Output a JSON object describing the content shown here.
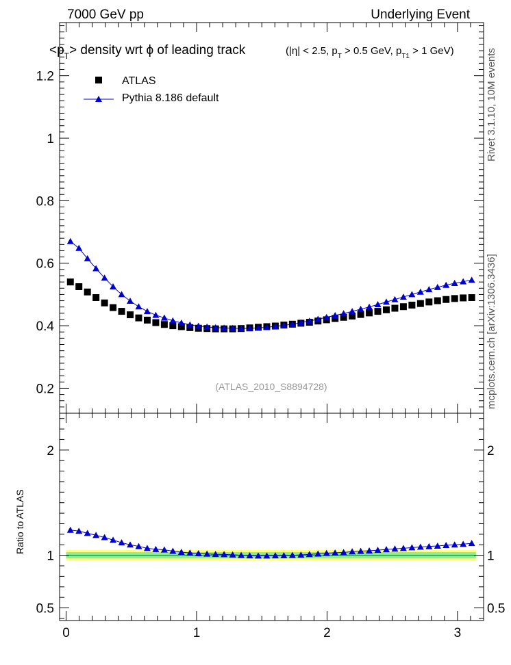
{
  "header": {
    "energy_label": "7000 GeV pp",
    "process_label": "Underlying Event"
  },
  "title": {
    "main_parts": [
      "<p",
      "T",
      "> density wrt  ϕ of leading track"
    ],
    "cuts_parts": [
      "(|η| < 2.5, p",
      "T",
      " > 0.5 GeV, p",
      "T1",
      " > 1 GeV)"
    ]
  },
  "side_labels": {
    "rivet": "Rivet 3.1.10,  10M events",
    "mcplots": "mcplots.cern.ch [arXiv:1306.3436]"
  },
  "analysis_tag": "(ATLAS_2010_S8894728)",
  "legend": {
    "placement": "top-left",
    "entries": [
      {
        "label": "ATLAS",
        "marker": "square",
        "color": "#000000"
      },
      {
        "label": "Pythia 8.186 default",
        "marker": "triangle-line",
        "color": "#0000cc"
      }
    ]
  },
  "ratio_ylabel": "Ratio to ATLAS",
  "colors": {
    "data": "#000000",
    "mc": "#0000cc",
    "band_outer": "#ffff80",
    "band_inner": "#90ee90",
    "ref_line": "#00aa55",
    "tag_text": "#999999",
    "side_text": "#555555"
  },
  "chart_data": [
    {
      "type": "scatter",
      "panel": "main",
      "xlim": [
        -0.05,
        3.2
      ],
      "ylim": [
        0.12,
        1.37
      ],
      "yticks": [
        0.2,
        0.4,
        0.6,
        0.8,
        1,
        1.2
      ],
      "ytick_labels": [
        "0.2",
        "0.4",
        "0.6",
        "0.8",
        "1",
        "1.2"
      ],
      "series": [
        {
          "name": "ATLAS",
          "x": [
            0.0327,
            0.0982,
            0.1636,
            0.2291,
            0.2945,
            0.36,
            0.4254,
            0.4909,
            0.5563,
            0.6218,
            0.6872,
            0.7527,
            0.8181,
            0.8836,
            0.949,
            1.0145,
            1.0799,
            1.1454,
            1.2108,
            1.2763,
            1.3417,
            1.4072,
            1.4726,
            1.5381,
            1.6035,
            1.669,
            1.7344,
            1.7999,
            1.8653,
            1.9308,
            1.9962,
            2.0617,
            2.1271,
            2.1926,
            2.258,
            2.3235,
            2.3889,
            2.4544,
            2.5198,
            2.5853,
            2.6507,
            2.7162,
            2.7816,
            2.8471,
            2.9125,
            2.978,
            3.0434,
            3.1089
          ],
          "y": [
            0.54,
            0.525,
            0.508,
            0.49,
            0.473,
            0.458,
            0.446,
            0.435,
            0.425,
            0.418,
            0.41,
            0.404,
            0.4,
            0.397,
            0.394,
            0.392,
            0.391,
            0.39,
            0.39,
            0.39,
            0.391,
            0.393,
            0.395,
            0.397,
            0.399,
            0.402,
            0.405,
            0.408,
            0.411,
            0.415,
            0.419,
            0.423,
            0.427,
            0.431,
            0.436,
            0.441,
            0.446,
            0.451,
            0.456,
            0.461,
            0.466,
            0.471,
            0.476,
            0.48,
            0.484,
            0.487,
            0.489,
            0.49
          ]
        },
        {
          "name": "Pythia 8.186 default",
          "x": [
            0.0327,
            0.0982,
            0.1636,
            0.2291,
            0.2945,
            0.36,
            0.4254,
            0.4909,
            0.5563,
            0.6218,
            0.6872,
            0.7527,
            0.8181,
            0.8836,
            0.949,
            1.0145,
            1.0799,
            1.1454,
            1.2108,
            1.2763,
            1.3417,
            1.4072,
            1.4726,
            1.5381,
            1.6035,
            1.669,
            1.7344,
            1.7999,
            1.8653,
            1.9308,
            1.9962,
            2.0617,
            2.1271,
            2.1926,
            2.258,
            2.3235,
            2.3889,
            2.4544,
            2.5198,
            2.5853,
            2.6507,
            2.7162,
            2.7816,
            2.8471,
            2.9125,
            2.978,
            3.0434,
            3.1089
          ],
          "y": [
            0.67,
            0.648,
            0.615,
            0.583,
            0.553,
            0.525,
            0.5,
            0.479,
            0.461,
            0.446,
            0.434,
            0.425,
            0.416,
            0.409,
            0.403,
            0.399,
            0.396,
            0.394,
            0.393,
            0.392,
            0.391,
            0.392,
            0.393,
            0.395,
            0.398,
            0.401,
            0.405,
            0.41,
            0.415,
            0.421,
            0.427,
            0.433,
            0.439,
            0.446,
            0.453,
            0.46,
            0.468,
            0.476,
            0.484,
            0.492,
            0.5,
            0.508,
            0.516,
            0.523,
            0.53,
            0.536,
            0.541,
            0.546
          ]
        }
      ]
    },
    {
      "type": "scatter",
      "panel": "ratio",
      "xlim": [
        -0.05,
        3.2
      ],
      "ylim": [
        0.38,
        2.35
      ],
      "xticks": [
        0,
        1,
        2,
        3
      ],
      "xtick_labels": [
        "0",
        "1",
        "2",
        "3"
      ],
      "yticks": [
        0.5,
        1,
        2
      ],
      "ytick_labels": [
        "0.5",
        "1",
        "2"
      ],
      "ylabel": "Ratio to ATLAS",
      "reference": 1.0,
      "band_inner": [
        0.97,
        1.03
      ],
      "band_outer": [
        0.95,
        1.05
      ],
      "series": [
        {
          "name": "Pythia 8.186 default",
          "x": [
            0.0327,
            0.0982,
            0.1636,
            0.2291,
            0.2945,
            0.36,
            0.4254,
            0.4909,
            0.5563,
            0.6218,
            0.6872,
            0.7527,
            0.8181,
            0.8836,
            0.949,
            1.0145,
            1.0799,
            1.1454,
            1.2108,
            1.2763,
            1.3417,
            1.4072,
            1.4726,
            1.5381,
            1.6035,
            1.669,
            1.7344,
            1.7999,
            1.8653,
            1.9308,
            1.9962,
            2.0617,
            2.1271,
            2.1926,
            2.258,
            2.3235,
            2.3889,
            2.4544,
            2.5198,
            2.5853,
            2.6507,
            2.7162,
            2.7816,
            2.8471,
            2.9125,
            2.978,
            3.0434,
            3.1089
          ],
          "y": [
            1.24,
            1.23,
            1.21,
            1.19,
            1.17,
            1.145,
            1.12,
            1.1,
            1.085,
            1.067,
            1.057,
            1.052,
            1.04,
            1.03,
            1.023,
            1.017,
            1.013,
            1.01,
            1.008,
            1.005,
            1.0,
            0.997,
            0.995,
            0.995,
            0.997,
            0.998,
            1.0,
            1.003,
            1.009,
            1.014,
            1.02,
            1.024,
            1.028,
            1.035,
            1.039,
            1.043,
            1.049,
            1.055,
            1.061,
            1.067,
            1.073,
            1.079,
            1.084,
            1.089,
            1.095,
            1.1,
            1.106,
            1.114
          ]
        }
      ]
    }
  ]
}
